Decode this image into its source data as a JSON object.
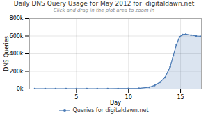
{
  "chart_data": {
    "type": "area",
    "title": "Daily DNS Query Usage for May 2012 for  digitaldawn.net",
    "subtitle": "Click and drag in the plot area to zoom in",
    "x_label": "Day",
    "y_label": "DNS Queries",
    "x": [
      1,
      2,
      3,
      4,
      5,
      6,
      7,
      8,
      9,
      10,
      11,
      12,
      12.5,
      13,
      13.5,
      14,
      14.3,
      14.6,
      14.9,
      15.2,
      15.5,
      16,
      16.5,
      17
    ],
    "series": [
      {
        "name": "Queries for digitaldawn.net",
        "color": "#4a7ab5",
        "values": [
          4000,
          4100,
          4000,
          4100,
          4000,
          4100,
          4000,
          4100,
          4200,
          5000,
          7000,
          20000,
          40000,
          75000,
          130000,
          250000,
          380000,
          500000,
          590000,
          615000,
          620000,
          610000,
          600000,
          597000
        ]
      }
    ],
    "marker": "circle",
    "xlim": [
      0.5,
      17
    ],
    "xticks": [
      5,
      10,
      15
    ],
    "ylim": [
      0,
      800000
    ],
    "yticks": [
      {
        "value": 0,
        "label": "0k"
      },
      {
        "value": 200000,
        "label": "200k"
      },
      {
        "value": 400000,
        "label": "400k"
      },
      {
        "value": 600000,
        "label": "600k"
      },
      {
        "value": 800000,
        "label": "800k"
      }
    ],
    "grid": true,
    "legend": "bottom"
  }
}
